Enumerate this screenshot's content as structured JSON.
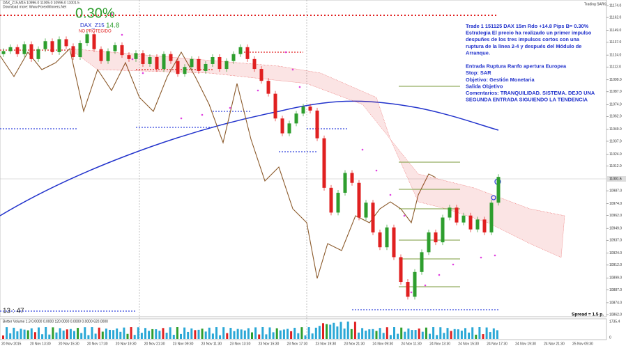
{
  "header": {
    "symbol_line": "DAX_Z15,M15  10996.0 11005.0 10996.0 11001.5",
    "download": "Download more: Www.ForexWinners.Net",
    "indicator": "Trading SAR©"
  },
  "trade_badge": {
    "percent": "0.30%",
    "symbol": "DAX_Z15",
    "pips": "14.8",
    "status": "NO PROTEGIDO"
  },
  "annotation": {
    "lines": [
      "Trade 1 151125 DAX 15m Rdo +14.8 Pips B= 0.30%",
      "Estrategia El precio ha realizado un primer impulso",
      "despuñes de los tres impulsos cortos con una",
      "ruptura de la línea 2-4 y después del Módulo de",
      "Arranque.",
      "",
      "Entrada Ruptura Ranfo apertura Europea",
      "Stop: SAR",
      "Objetivo: Gestión Monetaria",
      "Salida Objetivo",
      "Comentarios: TRANQUILIDAD. SISTEMA. DEJO UNA",
      "SEGUNDA ENTRADA SIGUIENDO LA TENDENCIA"
    ]
  },
  "timer": "13 : 47",
  "spread": "Spread = 1.5 p.",
  "current_price": "11001.5",
  "volume_panel": {
    "label": "Better Volume 1.3 0.0000 0.0000 120.0000 0.0000 0.0000 620.0000",
    "top": "1735.4",
    "bottom": "0"
  },
  "price_axis": {
    "range": [
      10862,
      11174
    ],
    "ticks": [
      {
        "value": 11174,
        "label": "11174.0"
      },
      {
        "value": 11162,
        "label": "11162.0"
      },
      {
        "value": 11149,
        "label": "11149.0"
      },
      {
        "value": 11137,
        "label": "11137.0"
      },
      {
        "value": 11124,
        "label": "11124.0"
      },
      {
        "value": 11112,
        "label": "11112.0"
      },
      {
        "value": 11099,
        "label": "11099.0"
      },
      {
        "value": 11087,
        "label": "11087.0"
      },
      {
        "value": 11074,
        "label": "11074.0"
      },
      {
        "value": 11062,
        "label": "11062.0"
      },
      {
        "value": 11049,
        "label": "11049.0"
      },
      {
        "value": 11037,
        "label": "11037.0"
      },
      {
        "value": 11024,
        "label": "11024.0"
      },
      {
        "value": 11012,
        "label": "11012.0"
      },
      {
        "value": 10987,
        "label": "10987.0"
      },
      {
        "value": 10974,
        "label": "10974.0"
      },
      {
        "value": 10962,
        "label": "10962.0"
      },
      {
        "value": 10949,
        "label": "10949.0"
      },
      {
        "value": 10937,
        "label": "10937.0"
      },
      {
        "value": 10924,
        "label": "10924.0"
      },
      {
        "value": 10912,
        "label": "10912.0"
      },
      {
        "value": 10899,
        "label": "10899.0"
      },
      {
        "value": 10887,
        "label": "10887.0"
      },
      {
        "value": 10874,
        "label": "10874.0"
      },
      {
        "value": 10862,
        "label": "10862.0"
      }
    ]
  },
  "time_axis": [
    "20 Nov 2015",
    "20 Nov 13:30",
    "20 Nov 15:30",
    "20 Nov 17:30",
    "20 Nov 19:30",
    "20 Nov 21:30",
    "23 Nov 09:30",
    "23 Nov 11:30",
    "23 Nov 13:30",
    "23 Nov 15:30",
    "23 Nov 17:30",
    "23 Nov 19:30",
    "23 Nov 21:30",
    "24 Nov 09:30",
    "24 Nov 11:30",
    "24 Nov 13:30",
    "24 Nov 15:30",
    "24 Nov 17:30",
    "24 Nov 19:30",
    "24 Nov 21:30",
    "25 Nov 09:30"
  ],
  "candles": {
    "first_open": 11125,
    "closes": [
      11128,
      11132,
      11125,
      11135,
      11120,
      11130,
      11138,
      11127,
      11140,
      11133,
      11122,
      11136,
      11145,
      11130,
      11118,
      11128,
      11134,
      11124,
      11120,
      11126,
      11115,
      11122,
      11110,
      11125,
      11118,
      11105,
      11112,
      11120,
      11108,
      11115,
      11122,
      11110,
      11118,
      11125,
      11132,
      11120,
      11110,
      11098,
      11085,
      11060,
      11045,
      11055,
      11065,
      11072,
      11068,
      11040,
      10990,
      10965,
      10985,
      11005,
      10995,
      10960,
      10975,
      10945,
      10930,
      10950,
      10920,
      10895,
      10880,
      10905,
      10925,
      10945,
      10935,
      10960,
      10970,
      10955,
      10962,
      10948,
      10958,
      10945,
      10975,
      11001
    ],
    "up_color": "#2e9e2e",
    "down_color": "#e02020"
  }
}
